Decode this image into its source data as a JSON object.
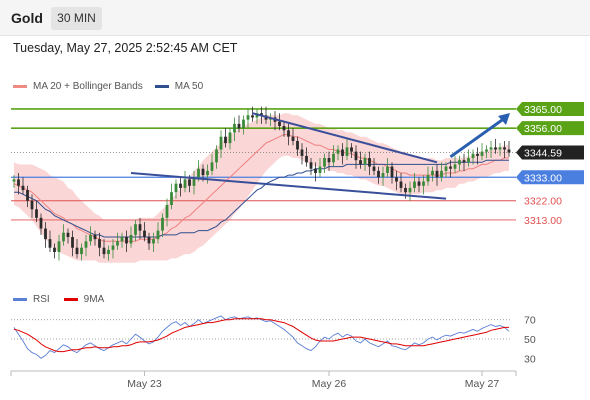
{
  "header": {
    "symbol": "Gold",
    "timeframe": "30 MIN",
    "datetime": "Tuesday, May 27, 2025 2:52:45 AM CET"
  },
  "legend_main": [
    {
      "label": "MA 20 + Bollinger Bands",
      "color": "#f28b82"
    },
    {
      "label": "MA 50",
      "color": "#2f4f8f"
    }
  ],
  "legend_rsi": [
    {
      "label": "RSI",
      "color": "#5b7fd6"
    },
    {
      "label": "9MA",
      "color": "#e00000"
    }
  ],
  "colors": {
    "up": "#3a8a3a",
    "down": "#2b2b2b",
    "bb_fill": "#fbd6d6",
    "ma20": "#f08080",
    "ma50": "#2f4f8f",
    "resistance": "#5aa317",
    "support_blue": "#4a7fe0",
    "support_red": "#e05050",
    "trend": "#3a4f9a",
    "arrow": "#2a5fb0",
    "price_tag": "#222222"
  },
  "chart_data": [
    {
      "type": "candlestick",
      "title": "Gold",
      "xlabel": "",
      "ylabel": "",
      "x_ticks": [
        "May 23",
        "May 26",
        "May 27"
      ],
      "ylim": [
        3283,
        3372
      ],
      "price_levels": [
        {
          "label": "3365.00",
          "value": 3365.0,
          "kind": "resistance"
        },
        {
          "label": "3356.00",
          "value": 3356.0,
          "kind": "resistance"
        },
        {
          "label": "3344.59",
          "value": 3344.59,
          "kind": "current"
        },
        {
          "label": "3333.00",
          "value": 3333.0,
          "kind": "pivot"
        },
        {
          "label": "3322.00",
          "value": 3322.0,
          "kind": "support"
        },
        {
          "label": "3313.00",
          "value": 3313.0,
          "kind": "support"
        }
      ],
      "trendlines": [
        {
          "from": [
            53,
            3363
          ],
          "to": [
            94,
            3340
          ]
        },
        {
          "from": [
            26,
            3335
          ],
          "to": [
            96,
            3323
          ]
        }
      ],
      "close": [
        3332,
        3329,
        3327,
        3322,
        3318,
        3314,
        3309,
        3304,
        3300,
        3298,
        3303,
        3307,
        3305,
        3300,
        3297,
        3300,
        3303,
        3306,
        3304,
        3300,
        3297,
        3299,
        3301,
        3303,
        3305,
        3302,
        3306,
        3311,
        3308,
        3305,
        3302,
        3304,
        3308,
        3314,
        3320,
        3326,
        3330,
        3328,
        3332,
        3329,
        3333,
        3337,
        3334,
        3336,
        3340,
        3346,
        3352,
        3349,
        3354,
        3358,
        3356,
        3360,
        3362,
        3361,
        3363,
        3362,
        3360,
        3361,
        3359,
        3357,
        3355,
        3352,
        3350,
        3346,
        3343,
        3340,
        3337,
        3335,
        3338,
        3342,
        3340,
        3344,
        3346,
        3343,
        3347,
        3345,
        3341,
        3339,
        3342,
        3338,
        3336,
        3333,
        3335,
        3338,
        3333,
        3331,
        3328,
        3326,
        3328,
        3331,
        3329,
        3331,
        3334,
        3336,
        3333,
        3336,
        3338,
        3337,
        3339,
        3341,
        3340,
        3342,
        3344,
        3343,
        3345,
        3346,
        3347,
        3346,
        3347,
        3346,
        3344.59
      ],
      "ma20": [
        3330,
        3329,
        3328,
        3327,
        3326,
        3324,
        3322,
        3320,
        3318,
        3316,
        3315,
        3314,
        3312,
        3311,
        3309,
        3308,
        3307,
        3306,
        3305,
        3304,
        3303,
        3303,
        3303,
        3303,
        3303,
        3303,
        3303,
        3303,
        3304,
        3304,
        3304,
        3304,
        3305,
        3306,
        3307,
        3309,
        3310,
        3312,
        3314,
        3315,
        3317,
        3319,
        3321,
        3323,
        3325,
        3327,
        3329,
        3331,
        3333,
        3335,
        3337,
        3339,
        3341,
        3343,
        3345,
        3347,
        3349,
        3350,
        3351,
        3352,
        3353,
        3353,
        3352,
        3352,
        3351,
        3350,
        3349,
        3348,
        3348,
        3347,
        3346,
        3346,
        3345,
        3345,
        3344,
        3344,
        3343,
        3342,
        3342,
        3341,
        3340,
        3339,
        3339,
        3338,
        3337,
        3336,
        3335,
        3335,
        3334,
        3334,
        3334,
        3334,
        3334,
        3334,
        3334,
        3334,
        3335,
        3335,
        3335,
        3336,
        3336,
        3337,
        3337,
        3338,
        3339,
        3339,
        3340,
        3341,
        3341,
        3342,
        3342
      ],
      "ma50": [
        3326,
        3326,
        3325,
        3324,
        3323,
        3322,
        3320,
        3318,
        3317,
        3315,
        3314,
        3313,
        3312,
        3311,
        3310,
        3309,
        3308,
        3307,
        3306,
        3306,
        3305,
        3305,
        3305,
        3305,
        3305,
        3305,
        3305,
        3305,
        3305,
        3305,
        3305,
        3305,
        3305,
        3306,
        3306,
        3306,
        3306,
        3307,
        3307,
        3307,
        3307,
        3308,
        3308,
        3308,
        3309,
        3310,
        3312,
        3313,
        3315,
        3317,
        3319,
        3321,
        3323,
        3325,
        3327,
        3328,
        3330,
        3331,
        3332,
        3333,
        3333,
        3334,
        3334,
        3335,
        3335,
        3336,
        3336,
        3337,
        3337,
        3337,
        3338,
        3338,
        3338,
        3338,
        3339,
        3339,
        3339,
        3339,
        3339,
        3339,
        3339,
        3339,
        3339,
        3339,
        3339,
        3339,
        3339,
        3339,
        3339,
        3339,
        3339,
        3339,
        3339,
        3339,
        3339,
        3339,
        3339,
        3340,
        3340,
        3340,
        3340,
        3340,
        3340,
        3340,
        3340,
        3341,
        3341,
        3341,
        3341,
        3341,
        3341
      ],
      "bb_width": [
        10,
        10,
        11,
        12,
        13,
        14,
        15,
        16,
        16,
        17,
        17,
        17,
        16,
        16,
        15,
        14,
        13,
        12,
        11,
        11,
        10,
        10,
        10,
        10,
        10,
        10,
        10,
        10,
        10,
        10,
        10,
        10,
        11,
        12,
        13,
        14,
        15,
        16,
        17,
        18,
        19,
        19,
        20,
        20,
        20,
        20,
        20,
        20,
        20,
        19,
        19,
        18,
        17,
        16,
        15,
        14,
        13,
        12,
        11,
        10,
        10,
        10,
        10,
        10,
        10,
        10,
        10,
        10,
        10,
        10,
        10,
        10,
        10,
        10,
        10,
        10,
        10,
        10,
        10,
        10,
        10,
        10,
        10,
        10,
        10,
        10,
        10,
        10,
        9,
        9,
        9,
        8,
        8,
        8,
        7,
        7,
        7,
        7,
        7,
        6,
        6,
        6,
        6,
        6,
        6,
        6,
        6,
        6,
        6,
        6,
        6
      ]
    },
    {
      "type": "line",
      "title": "RSI",
      "xlabel": "",
      "ylabel": "",
      "ylim": [
        20,
        78
      ],
      "y_ticks": [
        70,
        50,
        30
      ],
      "series": [
        {
          "name": "RSI",
          "values": [
            62,
            55,
            48,
            40,
            36,
            34,
            30,
            33,
            38,
            36,
            40,
            44,
            42,
            38,
            36,
            40,
            44,
            46,
            43,
            40,
            38,
            41,
            44,
            46,
            48,
            45,
            50,
            55,
            52,
            48,
            45,
            47,
            52,
            58,
            62,
            66,
            68,
            64,
            67,
            63,
            66,
            70,
            66,
            68,
            70,
            72,
            74,
            70,
            72,
            73,
            71,
            72,
            73,
            71,
            72,
            70,
            68,
            69,
            66,
            63,
            60,
            56,
            52,
            46,
            43,
            40,
            38,
            42,
            48,
            52,
            50,
            54,
            56,
            52,
            55,
            53,
            48,
            46,
            50,
            46,
            44,
            42,
            45,
            48,
            43,
            42,
            40,
            39,
            42,
            46,
            44,
            46,
            50,
            52,
            49,
            52,
            54,
            53,
            55,
            57,
            56,
            58,
            60,
            58,
            61,
            63,
            65,
            63,
            64,
            62,
            58
          ]
        },
        {
          "name": "9MA",
          "values": [
            60,
            59,
            57,
            55,
            52,
            49,
            45,
            42,
            40,
            38,
            37,
            37,
            38,
            39,
            39,
            40,
            41,
            41,
            42,
            41,
            41,
            41,
            42,
            42,
            43,
            43,
            44,
            46,
            47,
            47,
            47,
            48,
            49,
            51,
            53,
            56,
            58,
            60,
            62,
            63,
            64,
            65,
            66,
            67,
            67,
            68,
            69,
            70,
            70,
            71,
            71,
            71,
            71,
            71,
            71,
            71,
            70,
            70,
            69,
            68,
            67,
            65,
            63,
            60,
            57,
            54,
            51,
            49,
            48,
            48,
            48,
            48,
            49,
            50,
            51,
            52,
            52,
            52,
            51,
            50,
            49,
            48,
            47,
            46,
            45,
            45,
            44,
            43,
            43,
            43,
            43,
            43,
            44,
            45,
            46,
            47,
            48,
            49,
            50,
            51,
            52,
            53,
            54,
            55,
            56,
            57,
            59,
            60,
            61,
            62,
            62
          ]
        }
      ]
    }
  ]
}
